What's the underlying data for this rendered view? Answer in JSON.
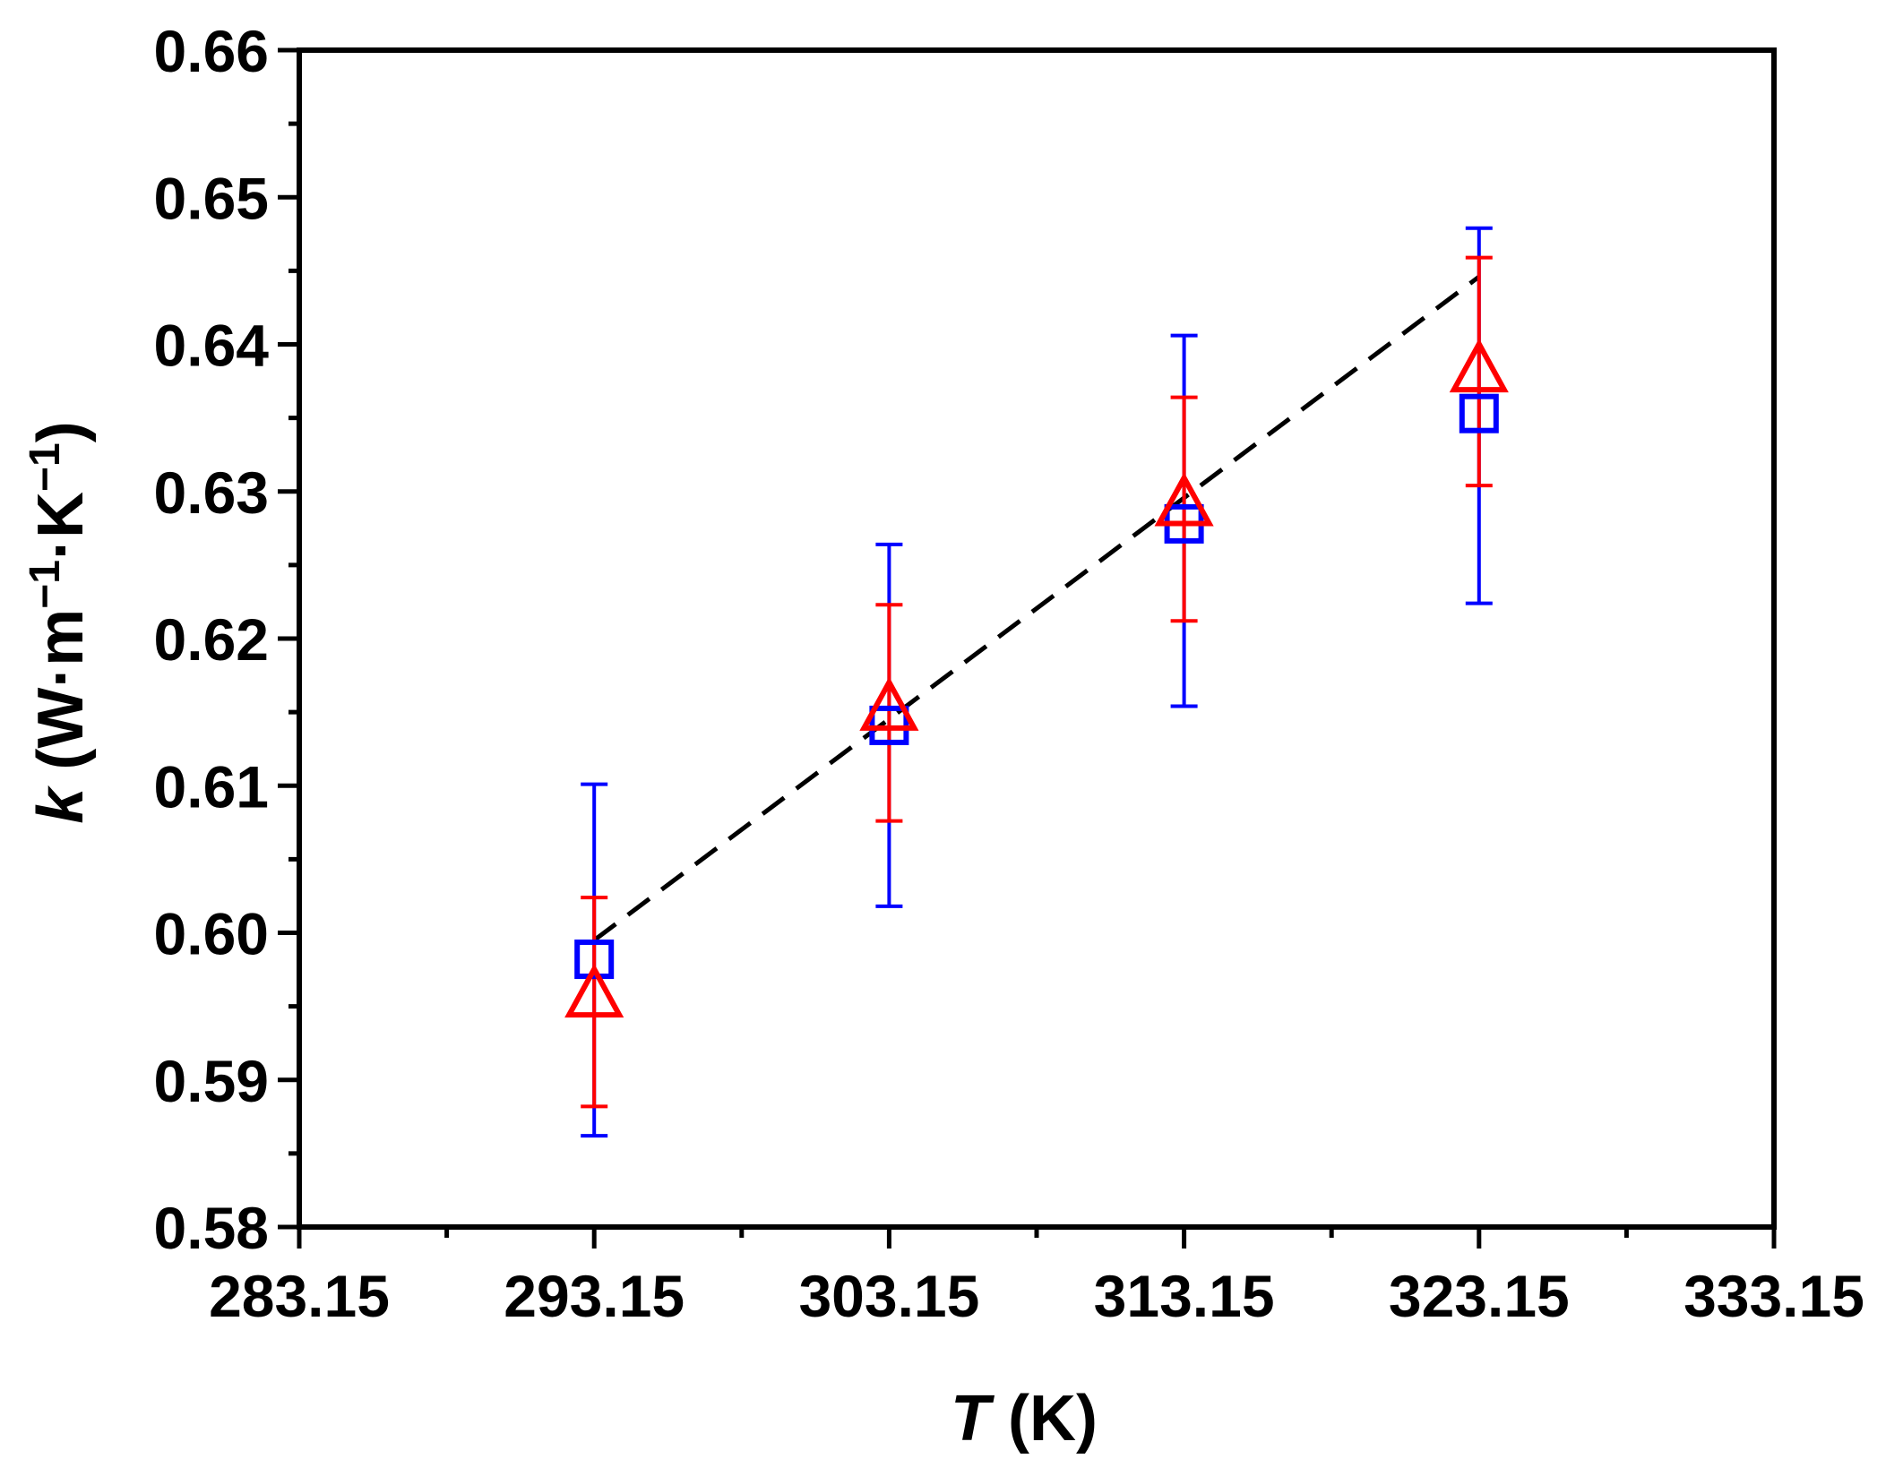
{
  "chart_data": {
    "type": "scatter",
    "xlabel": {
      "symbol": "T",
      "unit": " (K)"
    },
    "ylabel": {
      "symbol": "k",
      "unit_prefix": " (W·m",
      "exp1": "−1",
      "mid": "·K",
      "exp2": "−1",
      "unit_suffix": ")"
    },
    "xlim": [
      283.15,
      333.15
    ],
    "ylim": [
      0.58,
      0.66
    ],
    "xticks": [
      283.15,
      293.15,
      303.15,
      313.15,
      323.15,
      333.15
    ],
    "xtick_labels": [
      "283.15",
      "293.15",
      "303.15",
      "313.15",
      "323.15",
      "333.15"
    ],
    "yticks": [
      0.58,
      0.59,
      0.6,
      0.61,
      0.62,
      0.63,
      0.64,
      0.65,
      0.66
    ],
    "ytick_labels": [
      "0.58",
      "0.59",
      "0.60",
      "0.61",
      "0.62",
      "0.63",
      "0.64",
      "0.65",
      "0.66"
    ],
    "grid": false,
    "legend": "none",
    "series": [
      {
        "marker": "square",
        "color": "#0000ff",
        "x": [
          293.15,
          303.15,
          313.15,
          323.15
        ],
        "y": [
          0.5982,
          0.6141,
          0.6278,
          0.6353
        ],
        "yerr_low": [
          0.5862,
          0.6018,
          0.6154,
          0.6224
        ],
        "yerr_high": [
          0.6101,
          0.6264,
          0.6406,
          0.6479
        ]
      },
      {
        "marker": "triangle",
        "color": "#ff0000",
        "x": [
          293.15,
          303.15,
          313.15,
          323.15
        ],
        "y": [
          0.5957,
          0.6152,
          0.6291,
          0.6382
        ],
        "yerr_low": [
          0.5882,
          0.6076,
          0.6212,
          0.6304
        ],
        "yerr_high": [
          0.6024,
          0.6223,
          0.6364,
          0.6459
        ]
      }
    ],
    "fit_line": {
      "style": "dashed",
      "color": "#000000",
      "x": [
        293.15,
        323.15
      ],
      "y": [
        0.5995,
        0.6446
      ]
    }
  }
}
